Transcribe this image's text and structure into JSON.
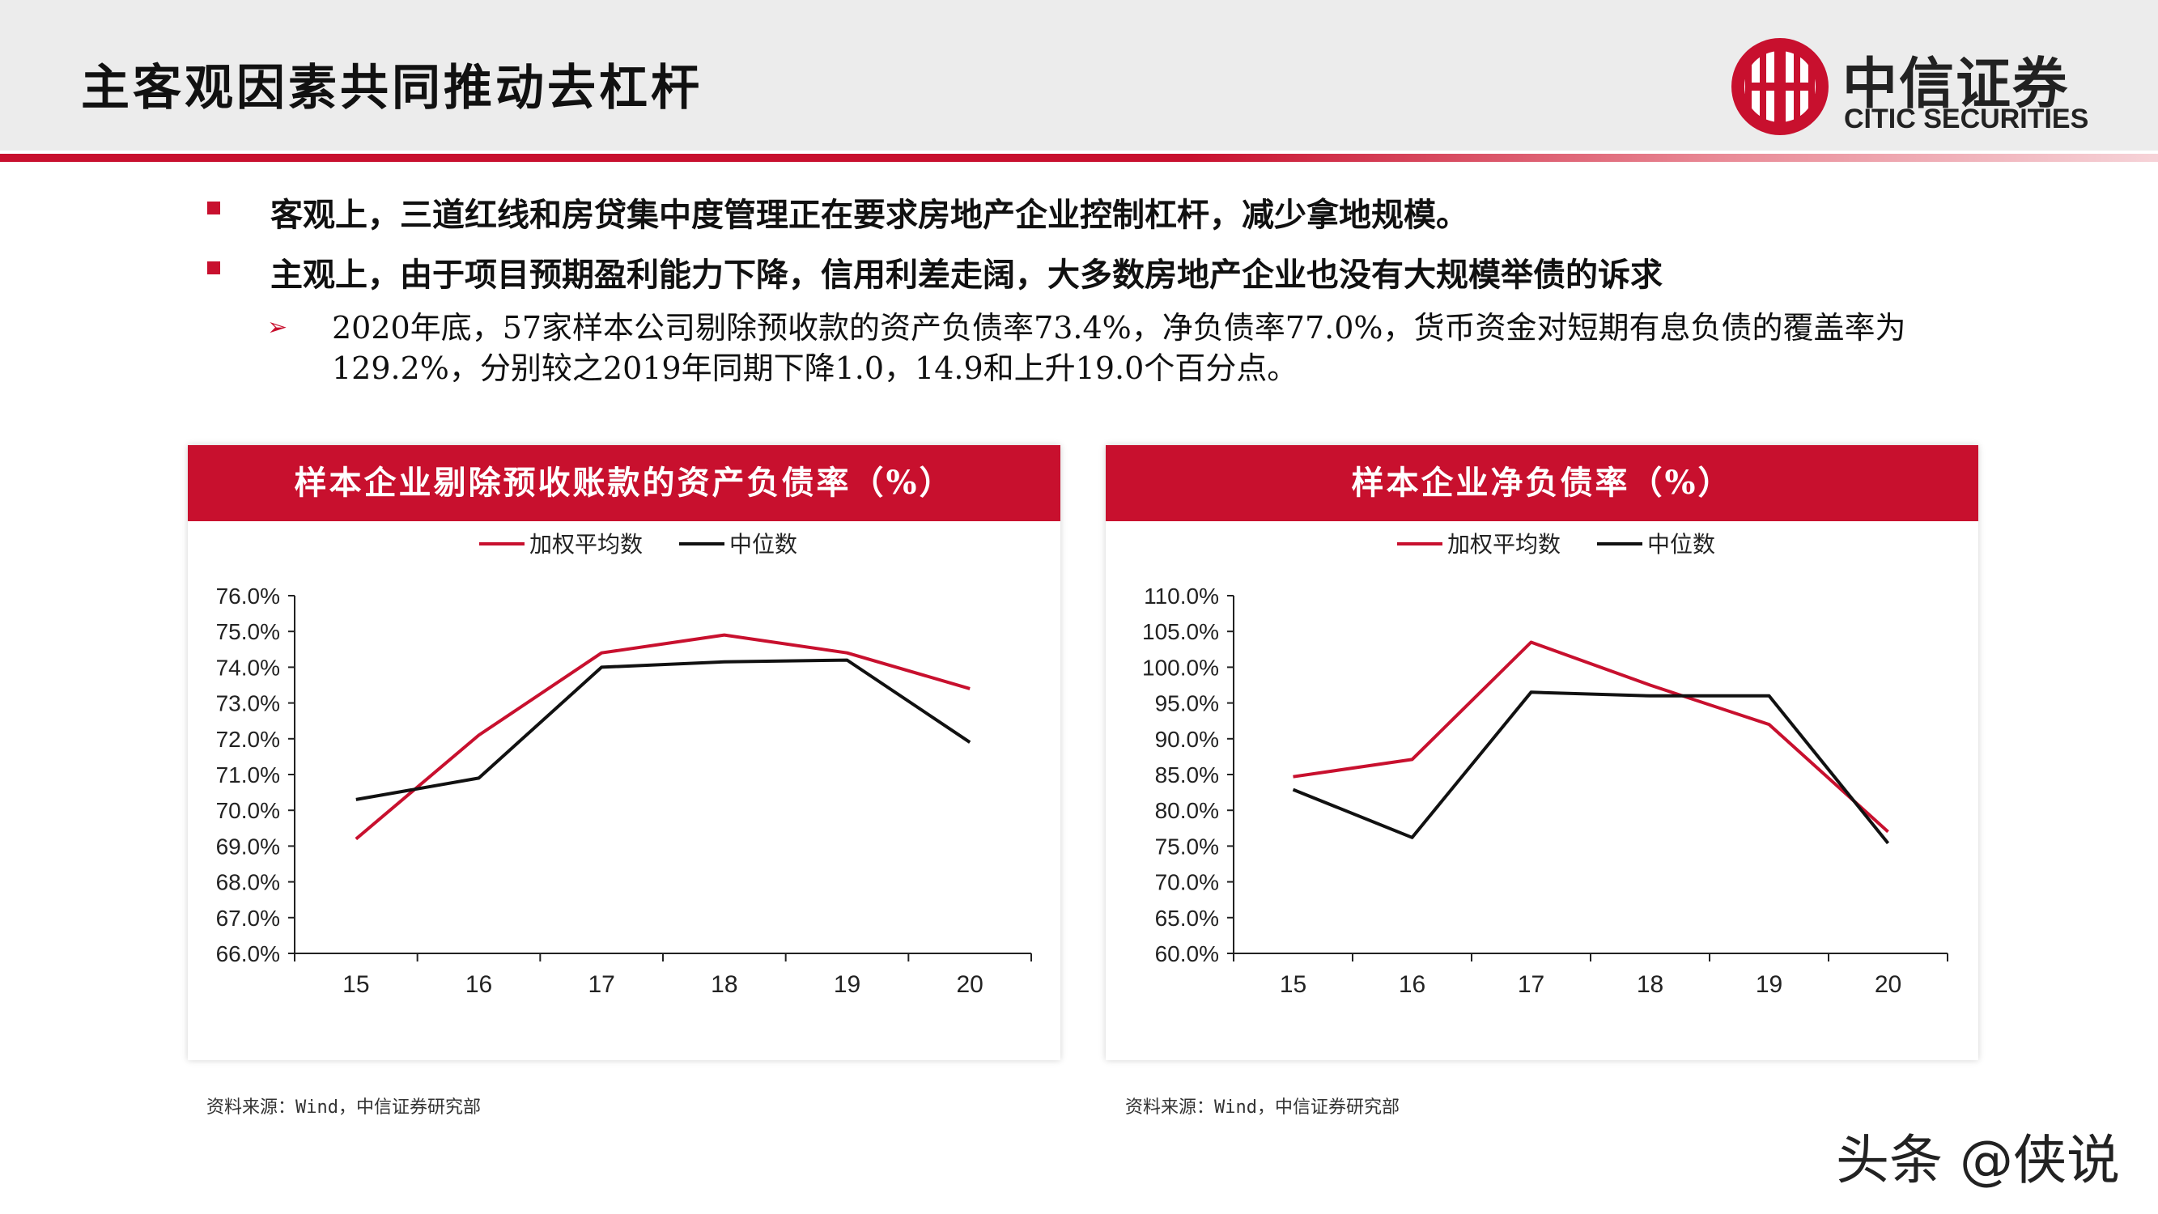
{
  "header": {
    "title": "主客观因素共同推动去杠杆",
    "logo_cn": "中信证券",
    "logo_en": "CITIC SECURITIES"
  },
  "bullets": [
    "客观上，三道红线和房贷集中度管理正在要求房地产企业控制杠杆，减少拿地规模。",
    "主观上，由于项目预期盈利能力下降，信用利差走阔，大多数房地产企业也没有大规模举债的诉求"
  ],
  "sub_bullet": "2020年底，57家样本公司剔除预收款的资产负债率73.4%，净负债率77.0%，货币资金对短期有息负债的覆盖率为129.2%，分别较之2019年同期下降1.0，14.9和上升19.0个百分点。",
  "chart_data": [
    {
      "type": "line",
      "title": "样本企业剔除预收账款的资产负债率（%）",
      "x": [
        "15",
        "16",
        "17",
        "18",
        "19",
        "20"
      ],
      "series": [
        {
          "name": "加权平均数",
          "color": "#c8102e",
          "values": [
            69.2,
            72.1,
            74.4,
            74.9,
            74.4,
            73.4
          ]
        },
        {
          "name": "中位数",
          "color": "#111111",
          "values": [
            70.3,
            70.9,
            74.0,
            74.15,
            74.2,
            71.9
          ]
        }
      ],
      "yticks": [
        "66.0%",
        "67.0%",
        "68.0%",
        "69.0%",
        "70.0%",
        "71.0%",
        "72.0%",
        "73.0%",
        "74.0%",
        "75.0%",
        "76.0%"
      ],
      "ylim": [
        66,
        76
      ],
      "legend": "top",
      "grid": false,
      "source": "资料来源：Wind，中信证券研究部"
    },
    {
      "type": "line",
      "title": "样本企业净负债率（%）",
      "x": [
        "15",
        "16",
        "17",
        "18",
        "19",
        "20"
      ],
      "series": [
        {
          "name": "加权平均数",
          "color": "#c8102e",
          "values": [
            84.7,
            87.1,
            103.5,
            97.5,
            92.0,
            77.0
          ]
        },
        {
          "name": "中位数",
          "color": "#111111",
          "values": [
            82.9,
            76.2,
            96.5,
            96.0,
            96.0,
            75.4
          ]
        }
      ],
      "yticks": [
        "60.0%",
        "65.0%",
        "70.0%",
        "75.0%",
        "80.0%",
        "85.0%",
        "90.0%",
        "95.0%",
        "100.0%",
        "105.0%",
        "110.0%"
      ],
      "ylim": [
        60,
        110
      ],
      "legend": "top",
      "grid": false,
      "source": "资料来源：Wind，中信证券研究部"
    }
  ],
  "watermark": "头条 @侠说"
}
